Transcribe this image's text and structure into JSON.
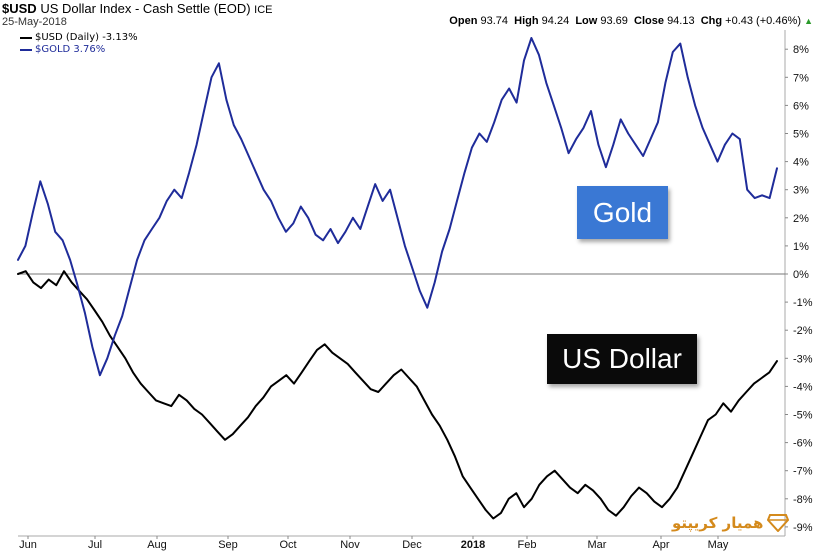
{
  "header": {
    "symbol": "$USD",
    "name": "US Dollar Index - Cash Settle (EOD)",
    "exchange": "ICE",
    "date": "25-May-2018",
    "open_label": "Open",
    "open": "93.74",
    "high_label": "High",
    "high": "94.24",
    "low_label": "Low",
    "low": "93.69",
    "close_label": "Close",
    "close": "94.13",
    "chg_label": "Chg",
    "chg": "+0.43 (+0.46%)",
    "up_arrow": "▲"
  },
  "legend": {
    "usd": "$USD (Daily) -3.13%",
    "gold": "$GOLD 3.76%"
  },
  "callouts": {
    "gold": "Gold",
    "usd": "US Dollar"
  },
  "logo": {
    "text": "همیار کریپتو",
    "icon": "diamond-icon"
  },
  "colors": {
    "usd": "#000000",
    "gold": "#1f2c9a",
    "gold_box": "#3a78d4",
    "usd_box": "#0a0a0a",
    "logo": "#d48a1c",
    "zero_line": "#777777"
  },
  "chart_data": {
    "type": "line",
    "title": "$USD US Dollar Index - Cash Settle (EOD) ICE",
    "x_tick_labels": [
      "Jun",
      "Jul",
      "Aug",
      "Sep",
      "Oct",
      "Nov",
      "Dec",
      "2018",
      "Feb",
      "Mar",
      "Apr",
      "May"
    ],
    "y_tick_labels": [
      "8%",
      "7%",
      "6%",
      "5%",
      "4%",
      "3%",
      "2%",
      "1%",
      "0%",
      "-1%",
      "-2%",
      "-3%",
      "-4%",
      "-5%",
      "-6%",
      "-7%",
      "-8%",
      "-9%"
    ],
    "ylim": [
      -9,
      8.5
    ],
    "x_period": "Jun 2017 - May 2018",
    "grid": false,
    "zero_line": true,
    "series": [
      {
        "name": "$USD (Daily) -3.13%",
        "key": "usd",
        "values": [
          0,
          0.1,
          -0.3,
          -0.5,
          -0.2,
          -0.4,
          0.1,
          -0.3,
          -0.6,
          -0.9,
          -1.3,
          -1.7,
          -2.2,
          -2.6,
          -3.0,
          -3.5,
          -3.9,
          -4.2,
          -4.5,
          -4.6,
          -4.7,
          -4.3,
          -4.5,
          -4.8,
          -5.0,
          -5.3,
          -5.6,
          -5.9,
          -5.7,
          -5.4,
          -5.1,
          -4.7,
          -4.4,
          -4.0,
          -3.8,
          -3.6,
          -3.9,
          -3.5,
          -3.1,
          -2.7,
          -2.5,
          -2.8,
          -3.0,
          -3.2,
          -3.5,
          -3.8,
          -4.1,
          -4.2,
          -3.9,
          -3.6,
          -3.4,
          -3.7,
          -4.0,
          -4.5,
          -5.0,
          -5.4,
          -5.9,
          -6.5,
          -7.2,
          -7.6,
          -8.0,
          -8.4,
          -8.7,
          -8.5,
          -8.0,
          -7.8,
          -8.3,
          -8.0,
          -7.5,
          -7.2,
          -7.0,
          -7.3,
          -7.6,
          -7.8,
          -7.5,
          -7.7,
          -8.0,
          -8.4,
          -8.6,
          -8.3,
          -7.9,
          -7.6,
          -7.8,
          -8.1,
          -8.3,
          -8.0,
          -7.6,
          -7.0,
          -6.4,
          -5.8,
          -5.2,
          -5.0,
          -4.6,
          -4.9,
          -4.5,
          -4.2,
          -3.9,
          -3.7,
          -3.5,
          -3.1
        ]
      },
      {
        "name": "$GOLD 3.76%",
        "key": "gold",
        "values": [
          0.5,
          1.0,
          2.2,
          3.3,
          2.5,
          1.5,
          1.2,
          0.5,
          -0.4,
          -1.4,
          -2.6,
          -3.6,
          -3.0,
          -2.2,
          -1.5,
          -0.5,
          0.5,
          1.2,
          1.6,
          2.0,
          2.6,
          3.0,
          2.7,
          3.6,
          4.6,
          5.8,
          7.0,
          7.5,
          6.2,
          5.3,
          4.8,
          4.2,
          3.6,
          3.0,
          2.6,
          2.0,
          1.5,
          1.8,
          2.4,
          2.0,
          1.4,
          1.2,
          1.6,
          1.1,
          1.5,
          2.0,
          1.6,
          2.4,
          3.2,
          2.6,
          3.0,
          2.0,
          1.0,
          0.2,
          -0.6,
          -1.2,
          -0.3,
          0.8,
          1.6,
          2.6,
          3.6,
          4.5,
          5.0,
          4.7,
          5.4,
          6.2,
          6.6,
          6.1,
          7.6,
          8.4,
          7.8,
          6.8,
          6.0,
          5.2,
          4.3,
          4.8,
          5.2,
          5.8,
          4.6,
          3.8,
          4.6,
          5.5,
          5.0,
          4.6,
          4.2,
          4.8,
          5.4,
          6.8,
          7.9,
          8.2,
          7.0,
          6.0,
          5.2,
          4.6,
          4.0,
          4.6,
          5.0,
          4.8,
          3.0,
          2.7,
          2.8,
          2.7,
          3.76
        ]
      }
    ]
  }
}
